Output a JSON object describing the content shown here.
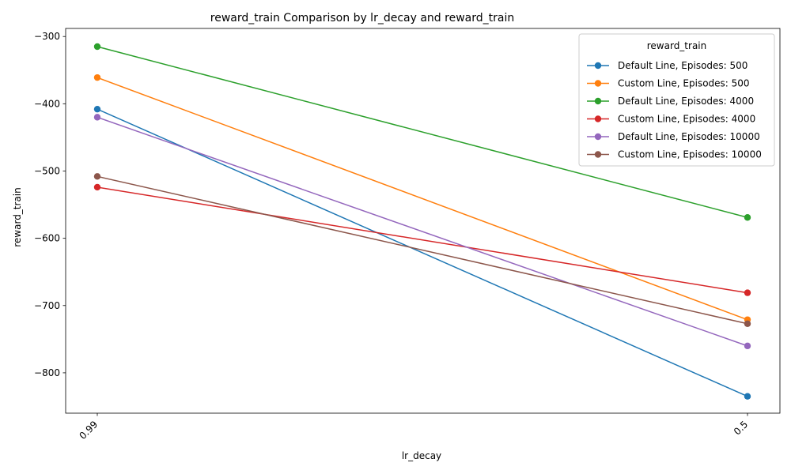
{
  "chart_data": {
    "type": "line",
    "title": "reward_train Comparison by lr_decay and reward_train",
    "xlabel": "lr_decay",
    "ylabel": "reward_train",
    "categories": [
      "0.99",
      "0.5"
    ],
    "ylim": [
      -860,
      -288
    ],
    "yticks": [
      -800,
      -700,
      -600,
      -500,
      -400,
      -300
    ],
    "ytick_labels": [
      "−800",
      "−700",
      "−600",
      "−500",
      "−400",
      "−300"
    ],
    "grid": false,
    "legend": {
      "title": "reward_train",
      "placement": "top-right"
    },
    "series": [
      {
        "name": "Default Line, Episodes: 500",
        "color": "#1f77b4",
        "values": [
          -408,
          -835
        ]
      },
      {
        "name": "Custom Line, Episodes: 500",
        "color": "#ff7f0e",
        "values": [
          -361,
          -721
        ]
      },
      {
        "name": "Default Line, Episodes: 4000",
        "color": "#2ca02c",
        "values": [
          -315,
          -569
        ]
      },
      {
        "name": "Custom Line, Episodes: 4000",
        "color": "#d62728",
        "values": [
          -524,
          -681
        ]
      },
      {
        "name": "Default Line, Episodes: 10000",
        "color": "#9467bd",
        "values": [
          -420,
          -760
        ]
      },
      {
        "name": "Custom Line, Episodes: 10000",
        "color": "#8c564b",
        "values": [
          -508,
          -727
        ]
      }
    ]
  }
}
